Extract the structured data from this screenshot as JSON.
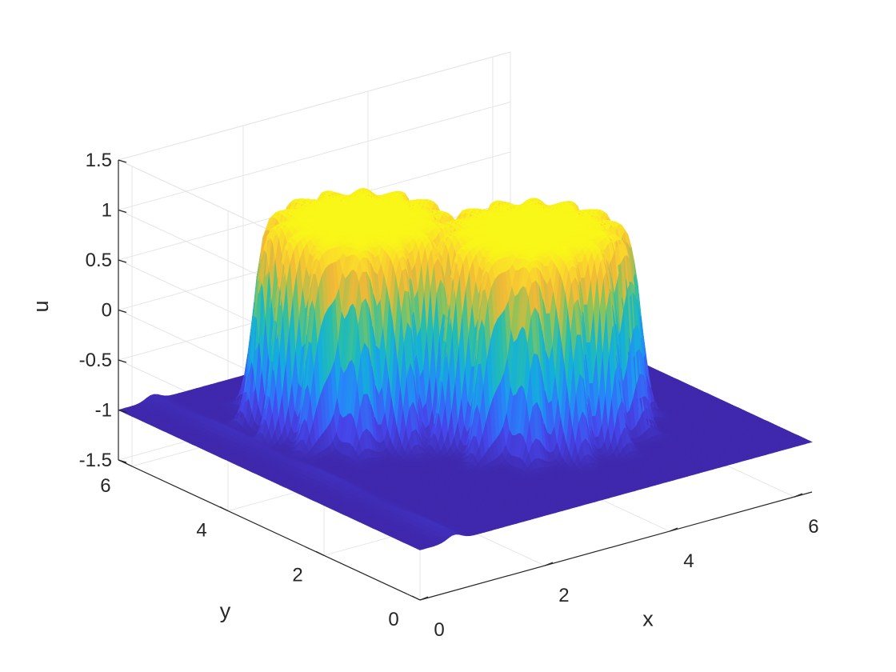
{
  "chart_data": {
    "type": "surface",
    "title": "",
    "xlabel": "x",
    "ylabel": "y",
    "zlabel": "u",
    "xlim": [
      0,
      6.283
    ],
    "ylim": [
      0,
      6.283
    ],
    "zlim": [
      -1.5,
      1.5
    ],
    "x_ticks": [
      "0",
      "2",
      "4",
      "6"
    ],
    "y_ticks": [
      "0",
      "2",
      "4",
      "6"
    ],
    "z_ticks": [
      "-1.5",
      "-1",
      "-0.5",
      "0",
      "0.5",
      "1",
      "1.5"
    ],
    "grid": true,
    "colormap": "parula",
    "colors": {
      "low": "#3e26a8",
      "mid": "#2ab5c7",
      "high": "#f9fb15",
      "grid": "#e6e6e6",
      "axis": "#262626"
    },
    "baseline_level": -1,
    "features": [
      {
        "shape": "cylinder",
        "center_x": 2.3,
        "center_y": 4.2,
        "radius": 1.3,
        "level": 1
      },
      {
        "shape": "cylinder",
        "center_x": 3.8,
        "center_y": 2.6,
        "radius": 1.3,
        "level": 1
      }
    ]
  }
}
